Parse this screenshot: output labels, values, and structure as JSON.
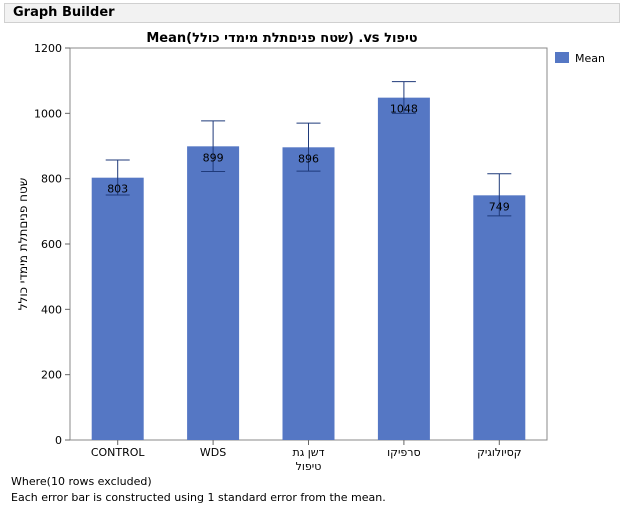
{
  "window": {
    "title": "Graph Builder"
  },
  "chart_data": {
    "type": "bar",
    "title": "טיפול vs. (שטח פניםתלת מימדי כולל)Mean",
    "xlabel": "",
    "ylabel": "שטח פניםתלת מימדי כולל",
    "categories": [
      "CONTROL",
      "WDS",
      "דשן גת טיפול",
      "סרפיקו",
      "קסיולוגיק"
    ],
    "category_lines": [
      [
        "CONTROL"
      ],
      [
        "WDS"
      ],
      [
        "דשן גת",
        "טיפול"
      ],
      [
        "סרפיקו"
      ],
      [
        "קסיולוגיק"
      ]
    ],
    "series": [
      {
        "name": "Mean",
        "values": [
          803,
          899,
          896,
          1048,
          749
        ],
        "error_low": [
          750,
          822,
          823,
          1000,
          686
        ],
        "error_high": [
          857,
          977,
          970,
          1097,
          815
        ],
        "color": "#5577c4"
      }
    ],
    "data_labels": [
      "803",
      "899",
      "896",
      "1048",
      "749"
    ],
    "yticks": [
      0,
      200,
      400,
      600,
      800,
      1000,
      1200
    ],
    "ylim": [
      0,
      1200
    ],
    "grid": false,
    "legend": {
      "position": "right",
      "entries": [
        "Mean"
      ]
    }
  },
  "footer": {
    "line1": "Where(10 rows excluded)",
    "line2": "Each error bar is constructed using 1 standard error from the mean."
  }
}
